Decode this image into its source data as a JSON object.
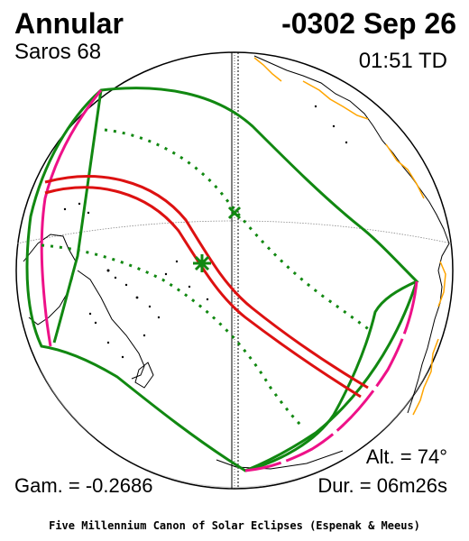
{
  "eclipse": {
    "type": "Annular",
    "date": "-0302 Sep 26",
    "saros": "Saros  68",
    "time": "01:51 TD",
    "altitude": "Alt. = 74°",
    "gamma": "Gam. = -0.2686",
    "duration": "Dur. = 06m26s"
  },
  "footer": "Five Millennium Canon of Solar Eclipses (Espenak & Meeus)",
  "colors": {
    "central_path": "#dd1111",
    "penumbral_limits": "#118811",
    "rise_set_curve": "#ee1188",
    "coastline": "#000000",
    "borders": "#ffa500",
    "globe_shadow": "#cccccc"
  },
  "markers": {
    "greatest_eclipse": "green-asterisk-icon",
    "subsolar_point": "green-x-icon"
  }
}
